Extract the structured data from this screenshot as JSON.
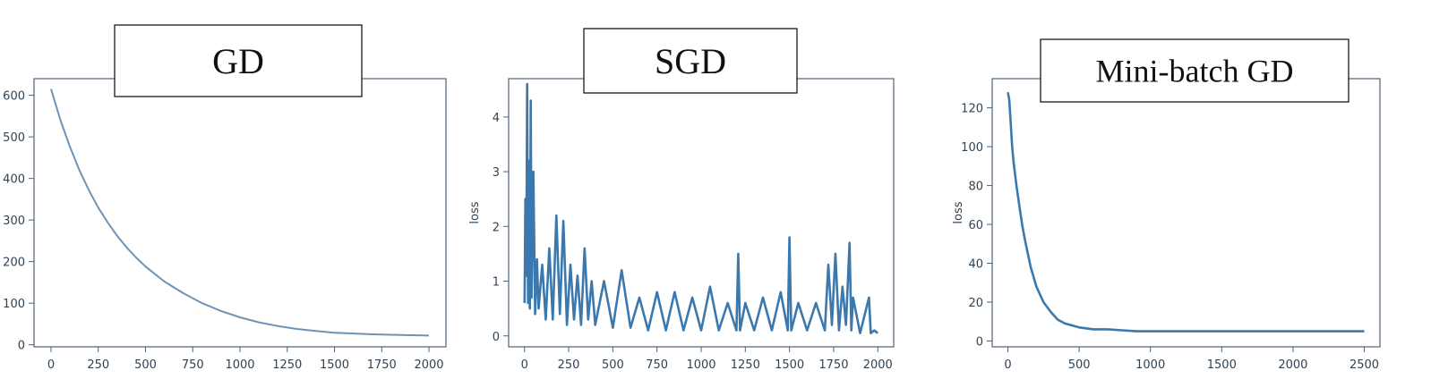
{
  "chart_data": [
    {
      "type": "line",
      "title": "GD",
      "xlabel": "",
      "ylabel": "",
      "xlim": [
        -90,
        2090
      ],
      "ylim": [
        -5,
        640
      ],
      "xticks": [
        0,
        250,
        500,
        750,
        1000,
        1250,
        1500,
        1750,
        2000
      ],
      "yticks": [
        0,
        100,
        200,
        300,
        400,
        500,
        600
      ],
      "grid": false,
      "series": [
        {
          "color": "#6f93b4",
          "x": [
            0,
            50,
            100,
            150,
            200,
            250,
            300,
            350,
            400,
            450,
            500,
            600,
            700,
            800,
            900,
            1000,
            1100,
            1200,
            1300,
            1400,
            1500,
            1600,
            1700,
            1800,
            1900,
            2000
          ],
          "y": [
            615,
            540,
            476,
            420,
            372,
            330,
            294,
            262,
            234,
            210,
            188,
            152,
            124,
            100,
            81,
            66,
            54,
            45,
            38,
            33,
            29,
            27,
            25,
            24,
            23,
            22
          ]
        }
      ]
    },
    {
      "type": "line",
      "title": "SGD",
      "xlabel": "",
      "ylabel": "loss",
      "xlim": [
        -90,
        2090
      ],
      "ylim": [
        -0.2,
        4.7
      ],
      "xticks": [
        0,
        250,
        500,
        750,
        1000,
        1250,
        1500,
        1750,
        2000
      ],
      "yticks": [
        0,
        1,
        2,
        3,
        4
      ],
      "grid": false,
      "series": [
        {
          "color": "#3b78ad",
          "x": [
            0,
            5,
            10,
            15,
            20,
            25,
            30,
            35,
            40,
            50,
            60,
            70,
            80,
            100,
            120,
            140,
            160,
            180,
            200,
            220,
            240,
            260,
            280,
            300,
            320,
            340,
            360,
            380,
            400,
            450,
            500,
            550,
            600,
            650,
            700,
            750,
            800,
            850,
            900,
            950,
            1000,
            1050,
            1100,
            1150,
            1200,
            1210,
            1220,
            1250,
            1300,
            1350,
            1400,
            1450,
            1490,
            1500,
            1510,
            1550,
            1600,
            1650,
            1700,
            1720,
            1740,
            1760,
            1780,
            1800,
            1820,
            1840,
            1850,
            1860,
            1900,
            1950,
            1960,
            1980,
            2000
          ],
          "y": [
            0.6,
            2.5,
            1.1,
            4.6,
            0.6,
            3.2,
            0.5,
            4.3,
            0.7,
            3.0,
            0.4,
            1.4,
            0.5,
            1.3,
            0.3,
            1.6,
            0.3,
            2.2,
            0.4,
            2.1,
            0.2,
            1.3,
            0.3,
            1.1,
            0.2,
            1.6,
            0.3,
            1.0,
            0.2,
            1.0,
            0.15,
            1.2,
            0.15,
            0.7,
            0.1,
            0.8,
            0.1,
            0.8,
            0.1,
            0.7,
            0.1,
            0.9,
            0.1,
            0.6,
            0.1,
            1.5,
            0.1,
            0.6,
            0.1,
            0.7,
            0.1,
            0.8,
            0.1,
            1.8,
            0.1,
            0.6,
            0.1,
            0.6,
            0.1,
            1.3,
            0.2,
            1.5,
            0.1,
            0.9,
            0.2,
            1.7,
            0.1,
            0.7,
            0.05,
            0.7,
            0.05,
            0.1,
            0.05
          ]
        }
      ]
    },
    {
      "type": "line",
      "title": "Mini-batch GD",
      "xlabel": "",
      "ylabel": "loss",
      "xlim": [
        -110,
        2610
      ],
      "ylim": [
        -3,
        135
      ],
      "xticks": [
        0,
        500,
        1000,
        1500,
        2000,
        2500
      ],
      "yticks": [
        0,
        20,
        40,
        60,
        80,
        100,
        120
      ],
      "grid": false,
      "series": [
        {
          "color": "#3b78ad",
          "x": [
            0,
            10,
            20,
            30,
            40,
            50,
            60,
            80,
            100,
            120,
            140,
            160,
            180,
            200,
            250,
            300,
            350,
            400,
            500,
            600,
            700,
            800,
            900,
            1000,
            1200,
            1400,
            1600,
            1800,
            2000,
            2200,
            2400,
            2500
          ],
          "y": [
            128,
            124,
            112,
            100,
            92,
            86,
            80,
            70,
            60,
            52,
            45,
            38,
            33,
            28,
            20,
            15,
            11,
            9,
            7,
            6,
            6,
            5.5,
            5,
            5,
            5,
            5,
            5,
            5,
            5,
            5,
            5,
            5
          ]
        }
      ]
    }
  ]
}
